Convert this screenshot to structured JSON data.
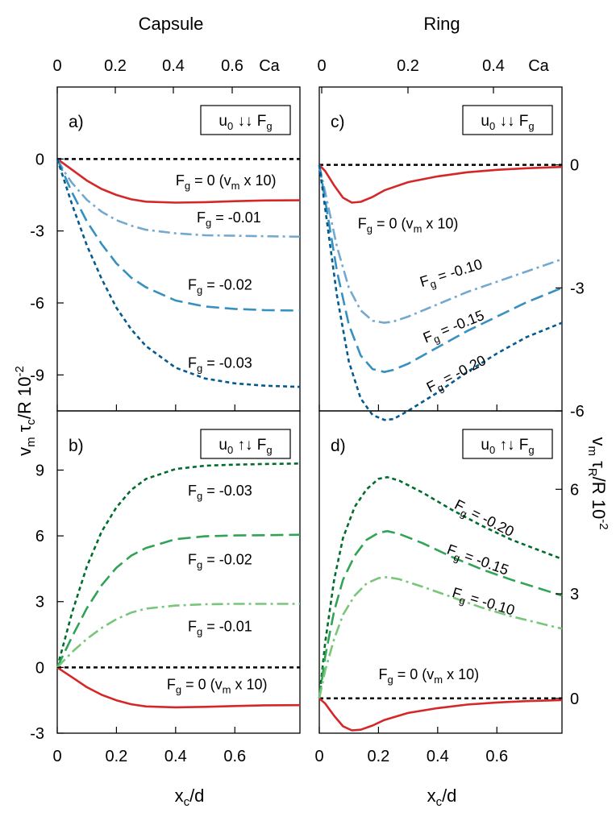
{
  "figure": {
    "column_titles": [
      "Capsule",
      "Ring"
    ],
    "top_axis_unit": "Ca",
    "bottom_axis_label": [
      "x",
      "c",
      "/d"
    ],
    "left_axis_label": [
      "v",
      "m",
      " τ",
      "c",
      "/R 10",
      "-2"
    ],
    "right_axis_label": [
      "v",
      "m",
      " τ",
      "R",
      "/R 10",
      "-2"
    ],
    "colors": {
      "red": "#d62728",
      "blue_light": "#74a9cf",
      "blue_mid": "#3690c0",
      "blue_dark": "#045a8d",
      "green_light": "#78c679",
      "green_mid": "#31a354",
      "green_dark": "#006d2c",
      "zero_line": "#000000"
    }
  },
  "chart_data": [
    {
      "panel": "a)",
      "type": "line",
      "box_label": [
        "u",
        "0",
        " ↓↓ F",
        "g"
      ],
      "xlim": [
        0,
        0.82
      ],
      "ylim": [
        -10.5,
        3.0
      ],
      "x_ticks": [
        0,
        0.2,
        0.4,
        0.6
      ],
      "x_tick_labels": [
        "0",
        "0.2",
        "0.4",
        "0.6"
      ],
      "top_ticks": [
        "0",
        "0.2",
        "0.4",
        "0.6"
      ],
      "top_tick_labels": [
        "0",
        "0.2",
        "0.4",
        "0.6"
      ],
      "y_ticks": [
        0,
        -3,
        -6,
        -9
      ],
      "y_tick_labels": [
        "0",
        "-3",
        "-6",
        "-9"
      ],
      "series": [
        {
          "name": "Fg = 0 (vm x 10)",
          "label_parts": [
            "F",
            "g",
            " = 0 (v",
            "m",
            " x 10)"
          ],
          "color": "red",
          "dash": "solid",
          "x": [
            0,
            0.05,
            0.1,
            0.15,
            0.2,
            0.25,
            0.3,
            0.4,
            0.5,
            0.6,
            0.7,
            0.82
          ],
          "y": [
            0,
            -0.45,
            -0.9,
            -1.25,
            -1.5,
            -1.68,
            -1.78,
            -1.82,
            -1.8,
            -1.76,
            -1.73,
            -1.72
          ]
        },
        {
          "name": "Fg = -0.01",
          "label_parts": [
            "F",
            "g",
            " = -0.01"
          ],
          "color": "blue_light",
          "dash": "dashdot",
          "x": [
            0,
            0.025,
            0.05,
            0.1,
            0.15,
            0.2,
            0.25,
            0.3,
            0.4,
            0.5,
            0.6,
            0.7,
            0.82
          ],
          "y": [
            0,
            -0.55,
            -1.0,
            -1.7,
            -2.2,
            -2.55,
            -2.78,
            -2.95,
            -3.1,
            -3.18,
            -3.2,
            -3.22,
            -3.24
          ]
        },
        {
          "name": "Fg = -0.02",
          "label_parts": [
            "F",
            "g",
            " = -0.02"
          ],
          "color": "blue_mid",
          "dash": "dashed",
          "x": [
            0,
            0.05,
            0.1,
            0.15,
            0.2,
            0.25,
            0.3,
            0.4,
            0.5,
            0.6,
            0.7,
            0.82
          ],
          "y": [
            0,
            -1.4,
            -2.6,
            -3.55,
            -4.35,
            -4.95,
            -5.35,
            -5.9,
            -6.15,
            -6.25,
            -6.3,
            -6.32
          ]
        },
        {
          "name": "Fg = -0.03",
          "label_parts": [
            "F",
            "g",
            " = -0.03"
          ],
          "color": "blue_dark",
          "dash": "dotted",
          "x": [
            0,
            0.05,
            0.1,
            0.15,
            0.2,
            0.25,
            0.3,
            0.4,
            0.5,
            0.6,
            0.7,
            0.82
          ],
          "y": [
            0,
            -1.9,
            -3.6,
            -5.0,
            -6.2,
            -7.1,
            -7.8,
            -8.7,
            -9.15,
            -9.35,
            -9.45,
            -9.5
          ]
        }
      ],
      "labels": [
        {
          "series": 0,
          "x": 0.57,
          "y": -1.1,
          "rotate": 0
        },
        {
          "series": 1,
          "x": 0.58,
          "y": -2.65,
          "rotate": 0
        },
        {
          "series": 2,
          "x": 0.55,
          "y": -5.45,
          "rotate": 0
        },
        {
          "series": 3,
          "x": 0.55,
          "y": -8.7,
          "rotate": 0
        }
      ]
    },
    {
      "panel": "b)",
      "type": "line",
      "box_label": [
        "u",
        "0",
        " ↑↓ F",
        "g"
      ],
      "xlim": [
        0,
        0.82
      ],
      "ylim": [
        -3,
        11.7
      ],
      "x_ticks": [
        0,
        0.2,
        0.4,
        0.6
      ],
      "x_tick_labels": [
        "0",
        "0.2",
        "0.4",
        "0.6"
      ],
      "y_ticks": [
        9,
        6,
        3,
        0,
        -3
      ],
      "y_tick_labels": [
        "9",
        "6",
        "3",
        "0",
        "-3"
      ],
      "series": [
        {
          "name": "Fg = -0.03",
          "label_parts": [
            "F",
            "g",
            " = -0.03"
          ],
          "color": "green_dark",
          "dash": "dotted",
          "x": [
            0,
            0.05,
            0.1,
            0.15,
            0.2,
            0.25,
            0.3,
            0.4,
            0.5,
            0.6,
            0.7,
            0.82
          ],
          "y": [
            0,
            2.5,
            4.6,
            6.2,
            7.3,
            8.1,
            8.6,
            9.05,
            9.2,
            9.25,
            9.28,
            9.3
          ]
        },
        {
          "name": "Fg = -0.02",
          "label_parts": [
            "F",
            "g",
            " = -0.02"
          ],
          "color": "green_mid",
          "dash": "dashed",
          "x": [
            0,
            0.05,
            0.1,
            0.15,
            0.2,
            0.25,
            0.3,
            0.4,
            0.5,
            0.6,
            0.7,
            0.82
          ],
          "y": [
            0,
            1.4,
            2.7,
            3.75,
            4.55,
            5.1,
            5.45,
            5.85,
            5.98,
            6.02,
            6.03,
            6.05
          ]
        },
        {
          "name": "Fg = -0.01",
          "label_parts": [
            "F",
            "g",
            " = -0.01"
          ],
          "color": "green_light",
          "dash": "dashdot",
          "x": [
            0,
            0.05,
            0.1,
            0.15,
            0.2,
            0.25,
            0.3,
            0.4,
            0.5,
            0.6,
            0.7,
            0.82
          ],
          "y": [
            0,
            0.7,
            1.3,
            1.8,
            2.2,
            2.5,
            2.68,
            2.82,
            2.88,
            2.9,
            2.9,
            2.9
          ]
        },
        {
          "name": "Fg = 0 (vm x 10)",
          "label_parts": [
            "F",
            "g",
            " = 0 (v",
            "m",
            " x 10)"
          ],
          "color": "red",
          "dash": "solid",
          "x": [
            0,
            0.05,
            0.1,
            0.15,
            0.2,
            0.25,
            0.3,
            0.4,
            0.5,
            0.6,
            0.7,
            0.82
          ],
          "y": [
            0,
            -0.45,
            -0.9,
            -1.25,
            -1.5,
            -1.68,
            -1.78,
            -1.82,
            -1.8,
            -1.76,
            -1.73,
            -1.72
          ]
        }
      ],
      "labels": [
        {
          "series": 0,
          "x": 0.55,
          "y": 7.85,
          "rotate": 0
        },
        {
          "series": 1,
          "x": 0.55,
          "y": 4.7,
          "rotate": 0
        },
        {
          "series": 2,
          "x": 0.55,
          "y": 1.65,
          "rotate": 0
        },
        {
          "series": 3,
          "x": 0.54,
          "y": -1.0,
          "rotate": 0
        }
      ]
    },
    {
      "panel": "c)",
      "type": "line",
      "box_label": [
        "u",
        "0",
        " ↓↓ F",
        "g"
      ],
      "xlim": [
        0,
        0.82
      ],
      "ylim": [
        -6.0,
        1.9
      ],
      "x_ticks": [
        0,
        0.2,
        0.4,
        0.6
      ],
      "top_ticks": [
        "0",
        "0.2",
        "0.4"
      ],
      "top_tick_labels": [
        "0",
        "0.2",
        "0.4"
      ],
      "y_ticks": [
        0,
        -3,
        -6
      ],
      "y_tick_labels": [
        "0",
        "-3",
        "-6"
      ],
      "series": [
        {
          "name": "Fg = 0 (vm x 10)",
          "label_parts": [
            "F",
            "g",
            " = 0 (v",
            "m",
            " x 10)"
          ],
          "color": "red",
          "dash": "solid",
          "x": [
            0,
            0.02,
            0.05,
            0.08,
            0.11,
            0.14,
            0.18,
            0.22,
            0.3,
            0.4,
            0.5,
            0.6,
            0.7,
            0.82
          ],
          "y": [
            0,
            -0.15,
            -0.5,
            -0.8,
            -0.92,
            -0.9,
            -0.78,
            -0.62,
            -0.42,
            -0.28,
            -0.18,
            -0.12,
            -0.08,
            -0.05
          ]
        },
        {
          "name": "Fg = -0.10",
          "label_parts": [
            "F",
            "g",
            " = -0.10"
          ],
          "color": "blue_light",
          "dash": "dashdot",
          "x": [
            0,
            0.03,
            0.06,
            0.1,
            0.14,
            0.18,
            0.22,
            0.25,
            0.3,
            0.4,
            0.5,
            0.6,
            0.7,
            0.82
          ],
          "y": [
            0,
            -1.0,
            -2.0,
            -3.0,
            -3.55,
            -3.8,
            -3.85,
            -3.82,
            -3.7,
            -3.4,
            -3.1,
            -2.85,
            -2.6,
            -2.3
          ]
        },
        {
          "name": "Fg = -0.15",
          "label_parts": [
            "F",
            "g",
            " = -0.15"
          ],
          "color": "blue_mid",
          "dash": "dashed",
          "x": [
            0,
            0.03,
            0.06,
            0.1,
            0.14,
            0.18,
            0.22,
            0.25,
            0.3,
            0.4,
            0.5,
            0.6,
            0.7,
            0.82
          ],
          "y": [
            0,
            -1.3,
            -2.6,
            -3.9,
            -4.65,
            -4.98,
            -5.05,
            -5.0,
            -4.85,
            -4.45,
            -4.05,
            -3.7,
            -3.35,
            -3.0
          ]
        },
        {
          "name": "Fg = -0.20",
          "label_parts": [
            "F",
            "g",
            " = -0.20"
          ],
          "color": "blue_dark",
          "dash": "dotted",
          "x": [
            0,
            0.03,
            0.06,
            0.1,
            0.14,
            0.18,
            0.22,
            0.25,
            0.3,
            0.4,
            0.5,
            0.6,
            0.7,
            0.82
          ],
          "y": [
            0,
            -1.6,
            -3.2,
            -4.8,
            -5.7,
            -6.1,
            -6.22,
            -6.2,
            -6.0,
            -5.55,
            -5.05,
            -4.6,
            -4.2,
            -3.85
          ]
        }
      ],
      "labels": [
        {
          "series": 0,
          "x": 0.3,
          "y": -1.55,
          "rotate": 0
        },
        {
          "series": 1,
          "x": 0.45,
          "y": -2.75,
          "rotate": -17
        },
        {
          "series": 2,
          "x": 0.46,
          "y": -4.05,
          "rotate": -22
        },
        {
          "series": 3,
          "x": 0.47,
          "y": -5.2,
          "rotate": -27
        }
      ]
    },
    {
      "panel": "d)",
      "type": "line",
      "box_label": [
        "u",
        "0",
        " ↑↓ F",
        "g"
      ],
      "xlim": [
        0,
        0.82
      ],
      "ylim": [
        -1.0,
        8.25
      ],
      "x_ticks": [
        0,
        0.2,
        0.4,
        0.6
      ],
      "x_tick_labels": [
        "0",
        "0.2",
        "0.4",
        "0.6"
      ],
      "y_ticks": [
        6,
        3,
        0
      ],
      "y_tick_labels": [
        "6",
        "3",
        "0"
      ],
      "series": [
        {
          "name": "Fg = -0.20",
          "label_parts": [
            "F",
            "g",
            " = -0.20"
          ],
          "color": "green_dark",
          "dash": "dotted",
          "x": [
            0,
            0.02,
            0.05,
            0.08,
            0.12,
            0.16,
            0.2,
            0.23,
            0.27,
            0.35,
            0.45,
            0.55,
            0.65,
            0.82
          ],
          "y": [
            0,
            1.6,
            3.4,
            4.6,
            5.5,
            6.0,
            6.3,
            6.35,
            6.25,
            5.9,
            5.4,
            4.95,
            4.55,
            4.0
          ]
        },
        {
          "name": "Fg = -0.15",
          "label_parts": [
            "F",
            "g",
            " = -0.15"
          ],
          "color": "green_mid",
          "dash": "dashed",
          "x": [
            0,
            0.02,
            0.05,
            0.08,
            0.12,
            0.16,
            0.2,
            0.23,
            0.27,
            0.35,
            0.45,
            0.55,
            0.65,
            0.82
          ],
          "y": [
            0,
            1.2,
            2.5,
            3.4,
            4.1,
            4.55,
            4.75,
            4.8,
            4.72,
            4.45,
            4.05,
            3.7,
            3.4,
            2.95
          ]
        },
        {
          "name": "Fg = -0.10",
          "label_parts": [
            "F",
            "g",
            " = -0.10"
          ],
          "color": "green_light",
          "dash": "dashdot",
          "x": [
            0,
            0.02,
            0.05,
            0.08,
            0.12,
            0.16,
            0.2,
            0.23,
            0.27,
            0.35,
            0.45,
            0.55,
            0.65,
            0.82
          ],
          "y": [
            0,
            0.8,
            1.7,
            2.4,
            2.95,
            3.3,
            3.45,
            3.48,
            3.42,
            3.2,
            2.9,
            2.6,
            2.35,
            2.0
          ]
        },
        {
          "name": "Fg = 0 (vm x 10)",
          "label_parts": [
            "F",
            "g",
            " = 0 (v",
            "m",
            " x 10)"
          ],
          "color": "red",
          "dash": "solid",
          "x": [
            0,
            0.02,
            0.05,
            0.08,
            0.11,
            0.14,
            0.18,
            0.22,
            0.3,
            0.4,
            0.5,
            0.6,
            0.7,
            0.82
          ],
          "y": [
            0,
            -0.15,
            -0.5,
            -0.8,
            -0.92,
            -0.9,
            -0.78,
            -0.62,
            -0.42,
            -0.28,
            -0.18,
            -0.12,
            -0.08,
            -0.05
          ]
        }
      ],
      "labels": [
        {
          "series": 0,
          "x": 0.55,
          "y": 5.05,
          "rotate": 27
        },
        {
          "series": 1,
          "x": 0.53,
          "y": 3.85,
          "rotate": 20
        },
        {
          "series": 2,
          "x": 0.55,
          "y": 2.65,
          "rotate": 17
        },
        {
          "series": 3,
          "x": 0.37,
          "y": 0.55,
          "rotate": 0
        }
      ]
    }
  ]
}
